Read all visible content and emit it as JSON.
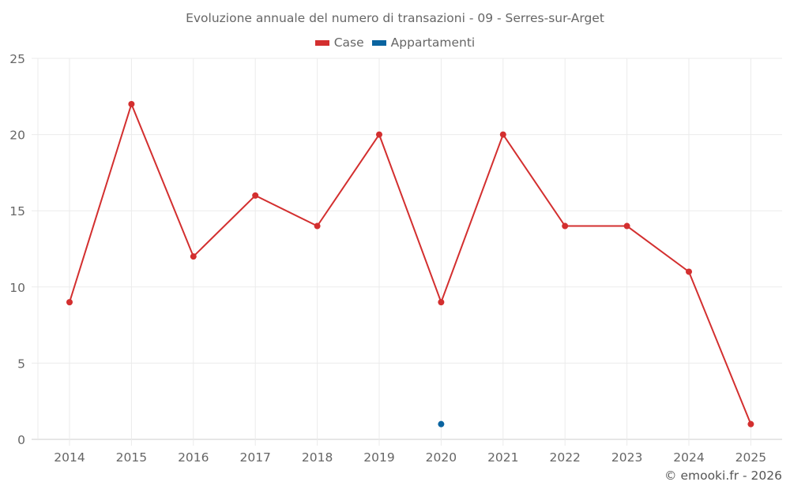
{
  "chart_data": {
    "type": "line",
    "title": "Evoluzione annuale del numero di transazioni - 09 - Serres-sur-Arget",
    "xlabel": "",
    "ylabel": "",
    "categories": [
      "2014",
      "2015",
      "2016",
      "2017",
      "2018",
      "2019",
      "2020",
      "2021",
      "2022",
      "2023",
      "2024",
      "2025"
    ],
    "series": [
      {
        "name": "Case",
        "color": "#d32f2f",
        "values": [
          9,
          22,
          12,
          16,
          14,
          20,
          9,
          20,
          14,
          14,
          11,
          1
        ]
      },
      {
        "name": "Appartamenti",
        "color": "#0a64a0",
        "values": [
          null,
          null,
          null,
          null,
          null,
          null,
          1,
          null,
          null,
          null,
          null,
          null
        ]
      }
    ],
    "ylim": [
      0,
      25
    ],
    "yticks": [
      0,
      5,
      10,
      15,
      20,
      25
    ],
    "grid": true,
    "legend_position": "top"
  },
  "credit": "© emooki.fr - 2026"
}
